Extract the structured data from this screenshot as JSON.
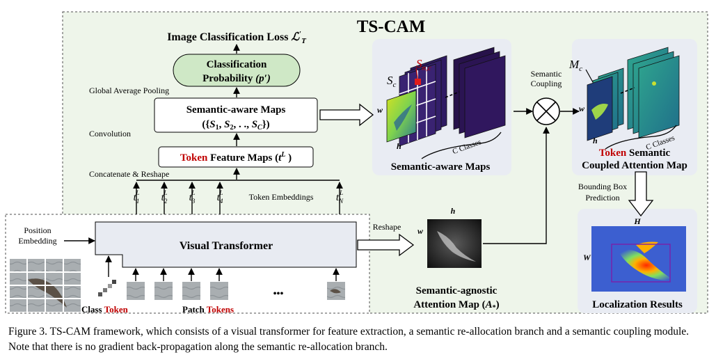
{
  "title": "TS-CAM",
  "loss": {
    "text": "Image Classification Loss",
    "symbol": "ℒ",
    "sup": "′",
    "sub": "T"
  },
  "cls_prob": {
    "line1": "Classification",
    "line2": "Probability",
    "symbol": "(p′)"
  },
  "gap_label": "Global Average Pooling",
  "sem_maps_box": {
    "line1": "Semantic-aware Maps",
    "line2_parts": [
      "({",
      "S",
      "1",
      ", ",
      "S",
      "2",
      ", . ., ",
      "S",
      "C",
      "})"
    ]
  },
  "conv_label": "Convolution",
  "token_fm": {
    "word1": "Token",
    "rest": " Feature Maps (",
    "t": "t",
    "sup": "L",
    "close": " )"
  },
  "concat_label": "Concatenate & Reshape",
  "token_embeddings_label": "Token Embeddings",
  "embeddings": [
    {
      "sub": "1",
      "sup": "L"
    },
    {
      "sub": "2",
      "sup": "L"
    },
    {
      "sub": "3",
      "sup": "L"
    },
    {
      "sub": "4",
      "sup": "L"
    },
    {
      "sub": "N",
      "sup": "L"
    }
  ],
  "position_embedding": {
    "line1": "Position",
    "line2": "Embedding"
  },
  "visual_transformer": "Visual Transformer",
  "class_token": {
    "word1": "Class ",
    "word2": "Token"
  },
  "patch_tokens": {
    "word1": "Patch ",
    "word2": "Tokens"
  },
  "ellipsis": "•••",
  "reshape_label": "Reshape",
  "sem_maps_stack": {
    "label": "Semantic-aware Maps",
    "w": "w",
    "h": "h",
    "sc": "S",
    "sc_sub": "c",
    "snc": "S",
    "snc_sub": "n,c",
    "c_classes": "C Classes"
  },
  "semantic_coupling": {
    "line1": "Semantic",
    "line2": "Coupling"
  },
  "coupled_map": {
    "mc": "M",
    "mc_sub": "c",
    "w": "w",
    "h": "h",
    "c_classes": "C Classes",
    "line1_red": "Token",
    "line1_rest": " Semantic",
    "line2": "Coupled Attention Map"
  },
  "bbox_prediction": {
    "line1": "Bounding Box",
    "line2": "Prediction"
  },
  "agnostic_map": {
    "h": "h",
    "w": "w",
    "line1": "Semantic-agnostic",
    "line2": "Attention Map (",
    "sym": "A",
    "sub": "*",
    "close": ")"
  },
  "localization": {
    "H": "H",
    "W": "W",
    "label": "Localization Results"
  },
  "caption": "Figure 3. TS-CAM framework, which consists of a visual transformer for feature extraction, a semantic re-allocation branch and a semantic coupling module. Note that there is no gradient back-propagation along the semantic re-allocation branch.",
  "colors": {
    "red": "#c00000",
    "green_fill": "#cfe8c6",
    "green_bg": "#eef5ea",
    "gray_bg": "#e9ecf3",
    "vt_fill": "#e8ebf2"
  }
}
